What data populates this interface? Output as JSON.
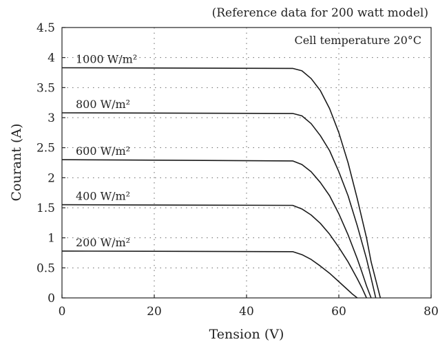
{
  "chart_data": {
    "type": "line",
    "subtitle": "(Reference data for 200 watt model)",
    "annotation": "Cell temperature 20°C",
    "xlabel": "Tension (V)",
    "ylabel": "Courant (A)",
    "xlim": [
      0,
      80
    ],
    "ylim": [
      0,
      4.5
    ],
    "x_ticks": [
      "0",
      "20",
      "40",
      "60",
      "80"
    ],
    "y_ticks": [
      "0",
      "0.5",
      "1",
      "1.5",
      "2",
      "2.5",
      "3",
      "3.5",
      "4",
      "4.5"
    ],
    "grid": "dotted",
    "series": [
      {
        "name": "1000 W/m²",
        "x": [
          0,
          50,
          52,
          54,
          56,
          58,
          60,
          62,
          64,
          66,
          67,
          68,
          69
        ],
        "y": [
          3.83,
          3.82,
          3.78,
          3.65,
          3.45,
          3.15,
          2.75,
          2.25,
          1.65,
          1.0,
          0.6,
          0.3,
          0
        ]
      },
      {
        "name": "800 W/m²",
        "x": [
          0,
          50,
          52,
          54,
          56,
          58,
          60,
          62,
          64,
          66,
          67,
          68
        ],
        "y": [
          3.08,
          3.07,
          3.03,
          2.9,
          2.7,
          2.45,
          2.1,
          1.7,
          1.2,
          0.65,
          0.33,
          0
        ]
      },
      {
        "name": "600 W/m²",
        "x": [
          0,
          50,
          52,
          54,
          56,
          58,
          60,
          62,
          64,
          65,
          66,
          67
        ],
        "y": [
          2.3,
          2.28,
          2.22,
          2.1,
          1.92,
          1.7,
          1.4,
          1.05,
          0.65,
          0.43,
          0.2,
          0
        ]
      },
      {
        "name": "400 W/m²",
        "x": [
          0,
          50,
          52,
          54,
          56,
          58,
          60,
          62,
          64,
          65,
          66
        ],
        "y": [
          1.55,
          1.54,
          1.48,
          1.38,
          1.24,
          1.06,
          0.84,
          0.6,
          0.32,
          0.17,
          0
        ]
      },
      {
        "name": "200 W/m²",
        "x": [
          0,
          50,
          52,
          54,
          56,
          58,
          60,
          62,
          63,
          64
        ],
        "y": [
          0.78,
          0.77,
          0.72,
          0.64,
          0.53,
          0.41,
          0.27,
          0.13,
          0.06,
          0
        ]
      }
    ]
  }
}
